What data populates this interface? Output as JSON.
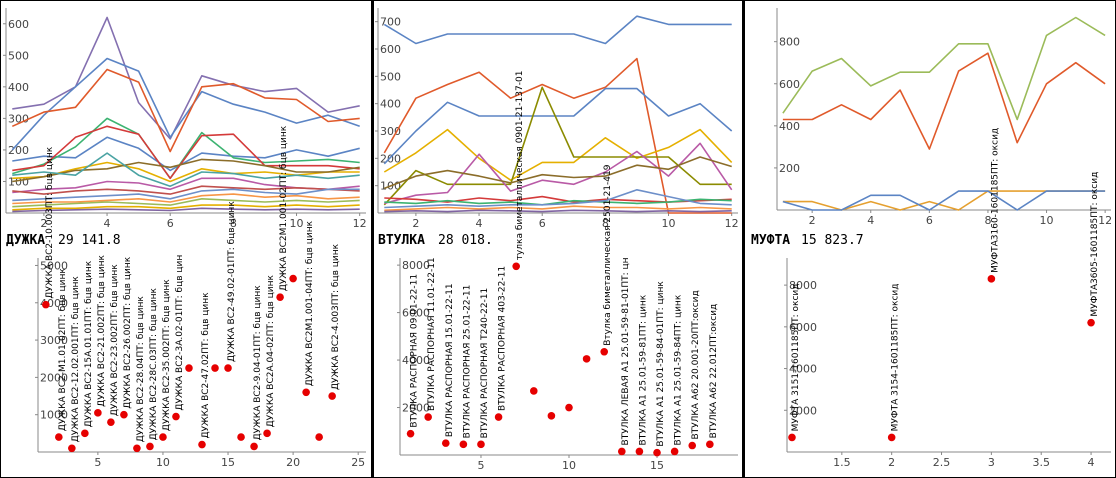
{
  "panels": [
    {
      "id": "p1",
      "title_name": "ДУЖКА",
      "title_total": "29 141.8"
    },
    {
      "id": "p2",
      "title_name": "ВТУЛКА",
      "title_total": "28 018."
    },
    {
      "id": "p3",
      "title_name": "МУФТА",
      "title_total": "15 823.7"
    }
  ],
  "chart_data": [
    {
      "type": "line",
      "panel": "p1",
      "x": [
        1,
        2,
        3,
        4,
        5,
        6,
        7,
        8,
        9,
        10,
        11,
        12
      ],
      "xlim": [
        0.8,
        12.2
      ],
      "ylim": [
        0,
        650
      ],
      "xticks": [
        2,
        4,
        6,
        8,
        10,
        12
      ],
      "yticks": [
        100,
        200,
        300,
        400,
        500,
        600
      ],
      "grid": false,
      "series": [
        {
          "color": "#8470b0",
          "values": [
            330,
            345,
            400,
            620,
            350,
            235,
            435,
            405,
            385,
            395,
            320,
            340
          ]
        },
        {
          "color": "#5b84c4",
          "values": [
            200,
            310,
            400,
            490,
            450,
            240,
            385,
            345,
            320,
            285,
            310,
            275
          ]
        },
        {
          "color": "#e05a2b",
          "values": [
            275,
            320,
            335,
            455,
            415,
            195,
            400,
            410,
            365,
            360,
            290,
            300
          ]
        },
        {
          "color": "#5b84c4",
          "values": [
            165,
            180,
            175,
            240,
            205,
            135,
            190,
            180,
            175,
            200,
            180,
            205
          ]
        },
        {
          "color": "#3cb371",
          "values": [
            125,
            155,
            210,
            300,
            250,
            110,
            255,
            175,
            160,
            165,
            170,
            160
          ]
        },
        {
          "color": "#d43a3a",
          "values": [
            135,
            150,
            240,
            275,
            250,
            110,
            245,
            250,
            150,
            150,
            150,
            140
          ]
        },
        {
          "color": "#e5b000",
          "values": [
            110,
            115,
            140,
            160,
            140,
            100,
            140,
            125,
            130,
            120,
            130,
            130
          ]
        },
        {
          "color": "#8b6d2a",
          "values": [
            100,
            115,
            135,
            140,
            160,
            145,
            170,
            165,
            150,
            130,
            130,
            145
          ]
        },
        {
          "color": "#4aa3a3",
          "values": [
            120,
            130,
            120,
            190,
            120,
            85,
            130,
            125,
            110,
            120,
            110,
            120
          ]
        },
        {
          "color": "#b95aa6",
          "values": [
            65,
            75,
            80,
            100,
            95,
            75,
            110,
            110,
            90,
            80,
            75,
            85
          ]
        },
        {
          "color": "#c0504d",
          "values": [
            70,
            60,
            70,
            75,
            70,
            60,
            85,
            80,
            75,
            80,
            75,
            70
          ]
        },
        {
          "color": "#6d8fc9",
          "values": [
            40,
            45,
            50,
            55,
            60,
            45,
            70,
            75,
            65,
            60,
            75,
            75
          ]
        },
        {
          "color": "#f79646",
          "values": [
            30,
            35,
            35,
            40,
            45,
            35,
            55,
            60,
            50,
            55,
            45,
            50
          ]
        },
        {
          "color": "#9bbb59",
          "values": [
            20,
            25,
            30,
            35,
            30,
            25,
            45,
            40,
            35,
            40,
            35,
            40
          ]
        },
        {
          "color": "#e5b000",
          "values": [
            10,
            15,
            15,
            20,
            20,
            15,
            25,
            25,
            20,
            25,
            20,
            25
          ]
        },
        {
          "color": "#8064a2",
          "values": [
            5,
            8,
            10,
            12,
            10,
            8,
            15,
            12,
            10,
            12,
            10,
            12
          ]
        }
      ]
    },
    {
      "type": "line",
      "panel": "p2",
      "x": [
        1,
        2,
        3,
        4,
        5,
        6,
        7,
        8,
        9,
        10,
        11,
        12
      ],
      "xlim": [
        0.8,
        12.2
      ],
      "ylim": [
        0,
        750
      ],
      "xticks": [
        2,
        4,
        6,
        8,
        10,
        12
      ],
      "yticks": [
        100,
        200,
        300,
        400,
        500,
        600,
        700
      ],
      "grid": false,
      "series": [
        {
          "color": "#5b84c4",
          "values": [
            690,
            620,
            655,
            655,
            655,
            655,
            655,
            620,
            720,
            690,
            690,
            690
          ]
        },
        {
          "color": "#e05a2b",
          "values": [
            220,
            420,
            470,
            515,
            420,
            470,
            420,
            460,
            565,
            0,
            0,
            0
          ]
        },
        {
          "color": "#5b84c4",
          "values": [
            180,
            300,
            405,
            355,
            355,
            355,
            355,
            455,
            455,
            355,
            400,
            300
          ]
        },
        {
          "color": "#e5b000",
          "values": [
            150,
            220,
            305,
            200,
            120,
            185,
            185,
            275,
            200,
            240,
            305,
            185
          ]
        },
        {
          "color": "#8b8b00",
          "values": [
            30,
            155,
            105,
            105,
            105,
            460,
            205,
            205,
            205,
            205,
            105,
            105
          ]
        },
        {
          "color": "#b95aa6",
          "values": [
            35,
            65,
            75,
            215,
            80,
            120,
            105,
            150,
            225,
            135,
            255,
            85
          ]
        },
        {
          "color": "#8b6d2a",
          "values": [
            90,
            135,
            155,
            135,
            110,
            140,
            130,
            135,
            175,
            160,
            205,
            170
          ]
        },
        {
          "color": "#d43a3a",
          "values": [
            55,
            50,
            40,
            55,
            45,
            60,
            40,
            50,
            45,
            40,
            45,
            50
          ]
        },
        {
          "color": "#3cb371",
          "values": [
            40,
            35,
            45,
            35,
            40,
            30,
            45,
            40,
            35,
            40,
            50,
            45
          ]
        },
        {
          "color": "#6d8fc9",
          "values": [
            20,
            25,
            30,
            25,
            30,
            30,
            35,
            45,
            85,
            60,
            35,
            30
          ]
        },
        {
          "color": "#f79646",
          "values": [
            10,
            15,
            20,
            15,
            20,
            15,
            25,
            20,
            20,
            15,
            20,
            15
          ]
        },
        {
          "color": "#8064a2",
          "values": [
            5,
            8,
            5,
            10,
            8,
            5,
            10,
            8,
            5,
            8,
            5,
            8
          ]
        }
      ]
    },
    {
      "type": "line",
      "panel": "p3",
      "x": [
        1,
        2,
        3,
        4,
        5,
        6,
        7,
        8,
        9,
        10,
        11,
        12
      ],
      "xlim": [
        0.8,
        12.2
      ],
      "ylim": [
        0,
        960
      ],
      "xticks": [
        2,
        4,
        6,
        8,
        10,
        12
      ],
      "yticks": [
        200,
        400,
        600,
        800
      ],
      "grid": false,
      "series": [
        {
          "color": "#9bbb59",
          "values": [
            460,
            660,
            720,
            590,
            655,
            655,
            790,
            790,
            430,
            830,
            915,
            830
          ]
        },
        {
          "color": "#e05a2b",
          "values": [
            430,
            430,
            500,
            430,
            570,
            290,
            660,
            745,
            320,
            600,
            700,
            600
          ]
        },
        {
          "color": "#e5a030",
          "values": [
            40,
            40,
            0,
            40,
            0,
            40,
            0,
            90,
            90,
            90,
            90,
            90
          ]
        },
        {
          "color": "#5b84c4",
          "values": [
            40,
            0,
            0,
            70,
            70,
            0,
            90,
            90,
            0,
            90,
            90,
            90
          ]
        }
      ]
    },
    {
      "type": "scatter",
      "panel": "p1",
      "xlim": [
        0.4,
        25.6
      ],
      "ylim": [
        0,
        5200
      ],
      "xticks": [
        5,
        10,
        15,
        20,
        25
      ],
      "yticks": [
        1000,
        2000,
        3000,
        4000,
        5000
      ],
      "color": "#e60000",
      "points": [
        {
          "x": 1,
          "y": 3950,
          "label": "ДУЖКА ВС2-10.003ПТ: бцв цинк"
        },
        {
          "x": 2,
          "y": 400,
          "label": "ДУЖКА ВС2-М1.01-02ПТ: бцв цинк"
        },
        {
          "x": 3,
          "y": 100,
          "label": "ДУЖКА ВС2-12.02.001ПТ: бцв цинк"
        },
        {
          "x": 4,
          "y": 500,
          "label": "ДУЖКА ВС2-15А.01.01ПТ: бцв цинк"
        },
        {
          "x": 5,
          "y": 1050,
          "label": "ДУЖКА ВС2-21.002ПТ: бцв цинк"
        },
        {
          "x": 6,
          "y": 800,
          "label": "ДУЖКА ВС2-23.002ПТ: бцв цинк"
        },
        {
          "x": 7,
          "y": 1000,
          "label": "ДУЖКА ВС2-26.002ПТ: бцв цинк"
        },
        {
          "x": 8,
          "y": 100,
          "label": "ДУЖКА ВС2-28.04ПТ: бцв цинк"
        },
        {
          "x": 9,
          "y": 150,
          "label": "ДУЖКА ВС2-28С.03ПТ: бцв цинк"
        },
        {
          "x": 10,
          "y": 400,
          "label": "ДУЖКА ВС2-35.002ПТ: бцв цинк"
        },
        {
          "x": 11,
          "y": 950,
          "label": "ДУЖКА ВС2-3А.02-01ПТ: бцв цин"
        },
        {
          "x": 12,
          "y": 2250,
          "label": ""
        },
        {
          "x": 13,
          "y": 200,
          "label": "ДУЖКА ВС2-47.02ПТ: бцв цинк"
        },
        {
          "x": 14,
          "y": 2250,
          "label": ""
        },
        {
          "x": 15,
          "y": 2250,
          "label": "ДУЖКА ВС2-49.02-01ПТ: бцв цинк"
        },
        {
          "x": 16,
          "y": 400,
          "label": ""
        },
        {
          "x": 17,
          "y": 150,
          "label": "ДУЖКА ВС2-9.04-01ПТ: бцв цинк"
        },
        {
          "x": 18,
          "y": 500,
          "label": "ДУЖКА ВС2А.04-02ПТ: бцв цинк"
        },
        {
          "x": 19,
          "y": 4150,
          "label": "ДУЖКА ВС2М1.001-02ПТ: бцв цинк"
        },
        {
          "x": 20,
          "y": 4650,
          "label": ""
        },
        {
          "x": 21,
          "y": 1600,
          "label": "ДУЖКА ВС2М1.001-04ПТ: бцв цинк"
        },
        {
          "x": 22,
          "y": 400,
          "label": ""
        },
        {
          "x": 23,
          "y": 1500,
          "label": "ДУЖКА ВС2-4.003ПТ: бцв цинк"
        }
      ]
    },
    {
      "type": "scatter",
      "panel": "p2",
      "xlim": [
        0.4,
        19.6
      ],
      "ylim": [
        0,
        8300
      ],
      "xticks": [
        5,
        10,
        15
      ],
      "yticks": [
        2000,
        4000,
        6000,
        8000
      ],
      "color": "#e60000",
      "points": [
        {
          "x": 1,
          "y": 900,
          "label": "ВТУЛКА РАСПОРНАЯ 09.01-22-11"
        },
        {
          "x": 2,
          "y": 1600,
          "label": "ВТУЛКА РАСПОРНАЯ 11.01-22-11"
        },
        {
          "x": 3,
          "y": 500,
          "label": "ВТУЛКА РАСПОРНАЯ 15.01-22-11"
        },
        {
          "x": 4,
          "y": 450,
          "label": "ВТУЛКА РАСПОРНАЯ 25.01-22-11"
        },
        {
          "x": 5,
          "y": 450,
          "label": "ВТУЛКА РАСПОРНАЯ Т240-22-11"
        },
        {
          "x": 6,
          "y": 1600,
          "label": "ВТУЛКА РАСПОРНАЯ 403-22-11"
        },
        {
          "x": 7,
          "y": 7950,
          "label": "тулка биметаллическая 0901-21-137-01"
        },
        {
          "x": 8,
          "y": 2700,
          "label": ""
        },
        {
          "x": 9,
          "y": 1650,
          "label": ""
        },
        {
          "x": 10,
          "y": 2000,
          "label": ""
        },
        {
          "x": 11,
          "y": 4050,
          "label": ""
        },
        {
          "x": 12,
          "y": 4350,
          "label": "Втулка биметаллическая 2501-21-419"
        },
        {
          "x": 13,
          "y": 150,
          "label": "ВТУЛКА ЛЕВАЯ А1 25.01-59-81-01ПТ: цн"
        },
        {
          "x": 14,
          "y": 150,
          "label": "ВТУЛКА А1 25.01-59-81ПТ: цинк"
        },
        {
          "x": 15,
          "y": 100,
          "label": "ВТУЛКА А1 25.01-59-84-01ПТ: цинк"
        },
        {
          "x": 16,
          "y": 150,
          "label": "ВТУЛКА А1 25.01-59-84ПТ: цинк"
        },
        {
          "x": 17,
          "y": 400,
          "label": "ВТУЛКА А62 20.001-20ПТ:оксид"
        },
        {
          "x": 18,
          "y": 450,
          "label": "ВТУЛКА А62 22.012ПТ:оксид"
        }
      ]
    },
    {
      "type": "scatter",
      "panel": "p3",
      "xlim": [
        0.95,
        4.2
      ],
      "ylim": [
        0,
        9300
      ],
      "xticks": [
        1.5,
        2,
        2.5,
        3,
        3.5,
        4
      ],
      "yticks": [
        2000,
        4000,
        6000,
        8000
      ],
      "color": "#e60000",
      "points": [
        {
          "x": 1,
          "y": 700,
          "label": "МУФТА 3151-1601185ПТ: оксид"
        },
        {
          "x": 2,
          "y": 700,
          "label": "МУФТА 3154-1601185ПТ: оксид"
        },
        {
          "x": 3,
          "y": 8300,
          "label": "МУФТА3160-1601185ПТ: оксид"
        },
        {
          "x": 4,
          "y": 6200,
          "label": "МУФТА3605-1601185ПТ: оксид"
        }
      ]
    }
  ]
}
